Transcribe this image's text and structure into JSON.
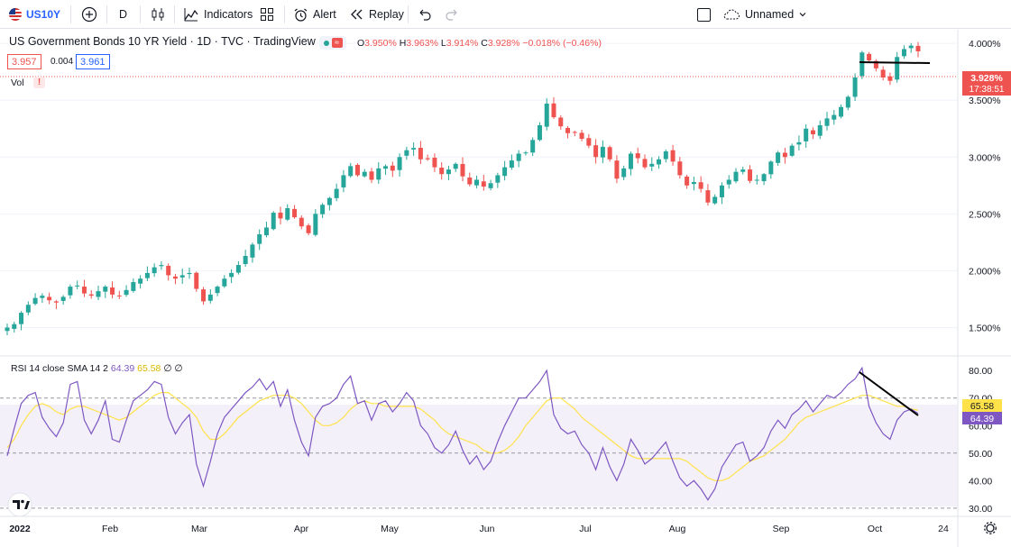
{
  "toolbar": {
    "symbol": "US10Y",
    "interval": "D",
    "indicators_label": "Indicators",
    "alert_label": "Alert",
    "replay_label": "Replay",
    "layout_name": "Unnamed"
  },
  "legend": {
    "title": "US Government Bonds 10 YR Yield · 1D · TVC · TradingView",
    "o_label": "O",
    "o_value": "3.950%",
    "h_label": "H",
    "h_value": "3.963%",
    "l_label": "L",
    "l_value": "3.914%",
    "c_label": "C",
    "c_value": "3.928%",
    "change": "−0.018% (−0.46%)",
    "bid": "3.957",
    "spread": "0.004",
    "ask": "3.961",
    "vol_label": "Vol",
    "vol_warning": "!"
  },
  "price_axis": {
    "ticks": [
      "4.000%",
      "3.500%",
      "3.000%",
      "2.500%",
      "2.000%",
      "1.500%"
    ],
    "last_price": "3.928%",
    "countdown": "17:38:51"
  },
  "rsi": {
    "legend_name": "RSI 14 close SMA 14 2",
    "rsi_value": "64.39",
    "sma_value": "65.58",
    "extra1": "∅",
    "extra2": "∅",
    "ticks": [
      "80.00",
      "70.00",
      "60.00",
      "50.00",
      "40.00",
      "30.00"
    ],
    "rsi_tag": "64.39",
    "sma_tag": "65.58"
  },
  "time_axis": {
    "labels": [
      "2022",
      "Feb",
      "Mar",
      "Apr",
      "May",
      "Jun",
      "Jul",
      "Aug",
      "Sep",
      "Oct",
      "24"
    ]
  },
  "colors": {
    "up": "#26a69a",
    "down": "#ef5350",
    "rsi_line": "#7e57c2",
    "sma_line": "#ffe24a",
    "last_price_bg": "#ef5350"
  },
  "chart_data": {
    "type": "candlestick",
    "title": "US Government Bonds 10 YR Yield · 1D · TVC · TradingView",
    "y_range": [
      1.25,
      4.12
    ],
    "close_series": [
      1.5,
      1.53,
      1.63,
      1.7,
      1.76,
      1.78,
      1.74,
      1.72,
      1.77,
      1.86,
      1.87,
      1.8,
      1.78,
      1.82,
      1.86,
      1.79,
      1.78,
      1.83,
      1.9,
      1.93,
      1.98,
      2.03,
      2.05,
      1.96,
      1.93,
      1.96,
      1.98,
      1.84,
      1.73,
      1.79,
      1.86,
      1.93,
      1.98,
      2.05,
      2.13,
      2.23,
      2.32,
      2.38,
      2.51,
      2.46,
      2.55,
      2.47,
      2.39,
      2.33,
      2.5,
      2.58,
      2.64,
      2.72,
      2.84,
      2.92,
      2.84,
      2.87,
      2.8,
      2.9,
      2.92,
      2.88,
      3.0,
      3.06,
      3.08,
      2.98,
      2.98,
      2.91,
      2.85,
      2.89,
      2.94,
      2.83,
      2.76,
      2.8,
      2.74,
      2.77,
      2.84,
      2.91,
      2.97,
      3.03,
      3.04,
      3.15,
      3.28,
      3.47,
      3.35,
      3.27,
      3.21,
      3.22,
      3.16,
      3.1,
      3.0,
      3.09,
      2.98,
      2.81,
      2.9,
      3.03,
      2.99,
      2.91,
      2.94,
      2.98,
      3.05,
      2.96,
      2.84,
      2.75,
      2.78,
      2.72,
      2.6,
      2.65,
      2.75,
      2.8,
      2.87,
      2.89,
      2.79,
      2.8,
      2.85,
      2.96,
      3.04,
      3.0,
      3.1,
      3.13,
      3.25,
      3.2,
      3.28,
      3.34,
      3.37,
      3.44,
      3.53,
      3.7,
      3.92,
      3.85,
      3.78,
      3.7,
      3.67,
      3.88,
      3.95,
      3.98,
      3.93
    ],
    "rsi_range": [
      27,
      84
    ],
    "rsi_reference_lines": [
      70,
      50,
      30
    ],
    "rsi_series": [
      49,
      59,
      68,
      71,
      72,
      63,
      59,
      56,
      61,
      75,
      76,
      62,
      57,
      62,
      69,
      55,
      54,
      62,
      69,
      71,
      73,
      76,
      75,
      63,
      57,
      61,
      64,
      46,
      38,
      47,
      57,
      63,
      66,
      69,
      72,
      74,
      77,
      73,
      76,
      67,
      73,
      62,
      54,
      49,
      63,
      67,
      68,
      70,
      75,
      78,
      68,
      69,
      62,
      68,
      69,
      65,
      68,
      72,
      69,
      60,
      57,
      52,
      50,
      53,
      58,
      51,
      46,
      49,
      44,
      47,
      54,
      60,
      65,
      70,
      70,
      73,
      76,
      80,
      64,
      59,
      57,
      58,
      53,
      50,
      44,
      52,
      45,
      40,
      46,
      55,
      51,
      46,
      48,
      51,
      54,
      47,
      41,
      38,
      40,
      37,
      33,
      37,
      45,
      49,
      53,
      54,
      47,
      49,
      52,
      58,
      62,
      59,
      64,
      66,
      69,
      65,
      68,
      71,
      70,
      72,
      75,
      77,
      81,
      67,
      61,
      57,
      55,
      62,
      65,
      66,
      64.39
    ],
    "sma_series": [
      52,
      55,
      60,
      64,
      67,
      68,
      67,
      65,
      64,
      66,
      67,
      67,
      66,
      65,
      64,
      63,
      62,
      63,
      65,
      67,
      69,
      71,
      72,
      72,
      70,
      68,
      66,
      63,
      58,
      55,
      55,
      57,
      60,
      63,
      65,
      67,
      69,
      70,
      71,
      71,
      71,
      70,
      68,
      65,
      62,
      60,
      60,
      61,
      63,
      66,
      68,
      69,
      68,
      68,
      67,
      67,
      67,
      67,
      67,
      66,
      64,
      62,
      59,
      57,
      56,
      55,
      54,
      53,
      51,
      50,
      50,
      51,
      53,
      56,
      60,
      63,
      66,
      69,
      70,
      70,
      68,
      66,
      63,
      61,
      59,
      57,
      55,
      53,
      51,
      49,
      48,
      48,
      48,
      48,
      48,
      48,
      48,
      47,
      45,
      43,
      41,
      40,
      40,
      41,
      43,
      45,
      47,
      48,
      49,
      51,
      53,
      55,
      58,
      61,
      63,
      64,
      65,
      66,
      67,
      68,
      69,
      70,
      71,
      71,
      70,
      69,
      68,
      67,
      67,
      66,
      65.58
    ]
  }
}
